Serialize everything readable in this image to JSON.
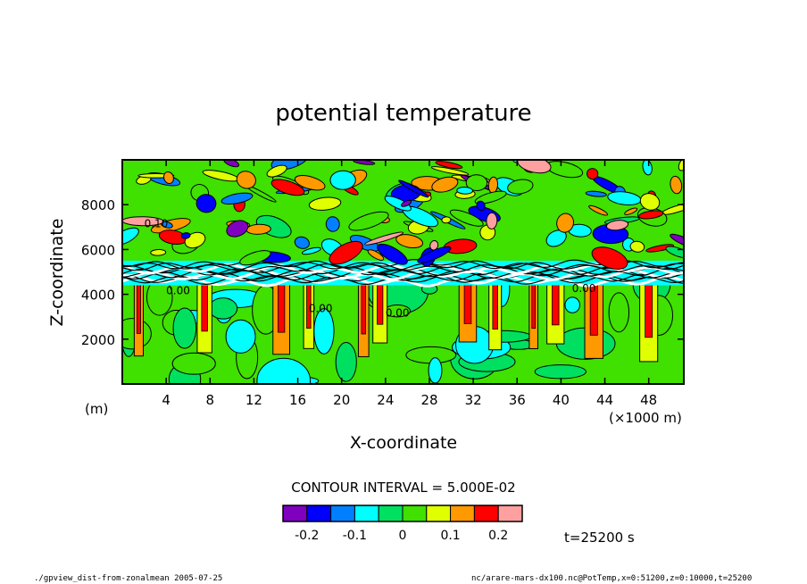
{
  "chart_data": {
    "type": "heatmap",
    "title": "potential temperature",
    "xlabel": "X-coordinate",
    "ylabel": "Z-coordinate",
    "x_unit_label": "(×1000 m)",
    "y_unit_label": "(m)",
    "xlim": [
      0,
      51.2
    ],
    "ylim": [
      0,
      10000
    ],
    "x_ticks": [
      "4",
      "8",
      "12",
      "16",
      "20",
      "24",
      "28",
      "32",
      "36",
      "40",
      "44",
      "48"
    ],
    "x_tick_values": [
      4,
      8,
      12,
      16,
      20,
      24,
      28,
      32,
      36,
      40,
      44,
      48
    ],
    "y_ticks": [
      "2000",
      "4000",
      "6000",
      "8000"
    ],
    "y_tick_values": [
      2000,
      4000,
      6000,
      8000
    ],
    "contour_interval_text": "CONTOUR INTERVAL = 5.000E-02",
    "contour_labels": [
      "0.00",
      "0.00",
      "0.00",
      "0.00",
      "0.10"
    ],
    "colorbar": {
      "bins": [
        -0.25,
        -0.2,
        -0.15,
        -0.1,
        -0.05,
        0,
        0.05,
        0.1,
        0.15,
        0.2,
        0.25
      ],
      "colors": [
        "#7f00bf",
        "#0000ff",
        "#0080ff",
        "#00ffff",
        "#00e060",
        "#40e000",
        "#e0ff00",
        "#ff9900",
        "#ff0000",
        "#ffa0a0"
      ],
      "tick_labels": [
        "-0.2",
        "-0.1",
        "0",
        "0.1",
        "0.2"
      ],
      "tick_values": [
        -0.2,
        -0.1,
        0,
        0.1,
        0.2
      ]
    },
    "field_description_levels": {
      "lower_layer_z_range": [
        0,
        4600
      ],
      "interface_z": 5000,
      "upper_layer_z_range": [
        5600,
        10000
      ]
    },
    "plumes_x": [
      1.5,
      7.5,
      14.5,
      17,
      22,
      23.5,
      31.5,
      34,
      37.5,
      39.5,
      43,
      48
    ]
  },
  "time_label": "t=25200 s",
  "footer_left": "./gpview_dist-from-zonalmean  2005-07-25",
  "footer_right": "nc/arare-mars-dx100.nc@PotTemp,x=0:51200,z=0:10000,t=25200"
}
